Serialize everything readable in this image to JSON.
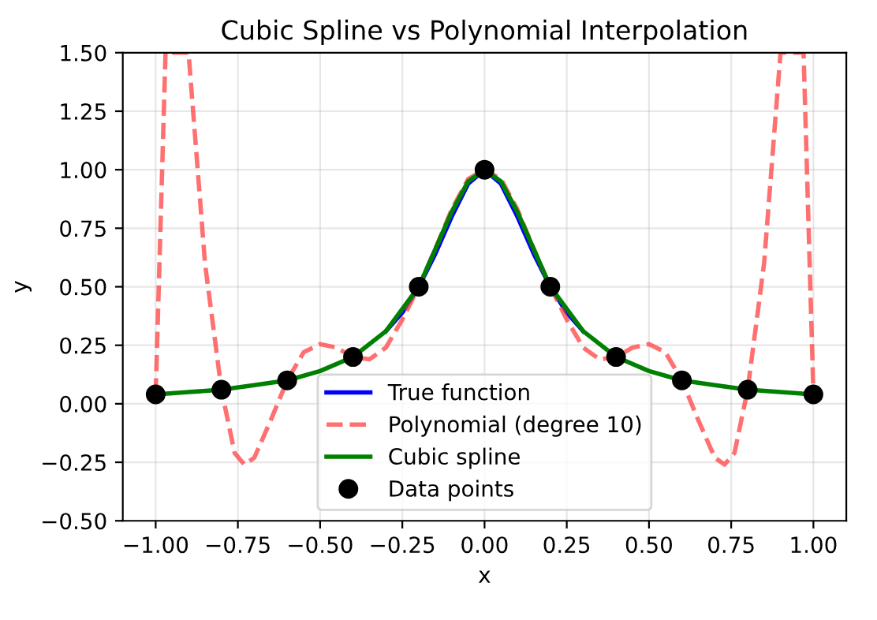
{
  "chart_data": {
    "type": "line",
    "title": "Cubic Spline vs Polynomial Interpolation",
    "xlabel": "x",
    "ylabel": "y",
    "xlim": [
      -1.1,
      1.1
    ],
    "ylim": [
      -0.5,
      1.5
    ],
    "xticks": [
      {
        "value": -1,
        "label": "−1.00"
      },
      {
        "value": -0.75,
        "label": "−0.75"
      },
      {
        "value": -0.5,
        "label": "−0.50"
      },
      {
        "value": -0.25,
        "label": "−0.25"
      },
      {
        "value": 0,
        "label": "0.00"
      },
      {
        "value": 0.25,
        "label": "0.25"
      },
      {
        "value": 0.5,
        "label": "0.50"
      },
      {
        "value": 0.75,
        "label": "0.75"
      },
      {
        "value": 1,
        "label": "1.00"
      }
    ],
    "yticks": [
      {
        "value": -0.5,
        "label": "−0.50"
      },
      {
        "value": -0.25,
        "label": "−0.25"
      },
      {
        "value": 0,
        "label": "0.00"
      },
      {
        "value": 0.25,
        "label": "0.25"
      },
      {
        "value": 0.5,
        "label": "0.50"
      },
      {
        "value": 0.75,
        "label": "0.75"
      },
      {
        "value": 1,
        "label": "1.00"
      },
      {
        "value": 1.25,
        "label": "1.25"
      },
      {
        "value": 1.5,
        "label": "1.50"
      }
    ],
    "grid": true,
    "legend": "bottom",
    "series": [
      {
        "name": "True function",
        "color": "#0000ff",
        "line_style": "solid",
        "marker": "none",
        "x": [
          -0.3,
          -0.25,
          -0.2,
          -0.15,
          -0.1,
          -0.05,
          0,
          0.05,
          0.1,
          0.15,
          0.2,
          0.25,
          0.3
        ],
        "values": [
          0.31,
          0.39,
          0.5,
          0.64,
          0.8,
          0.94,
          1,
          0.94,
          0.8,
          0.64,
          0.5,
          0.39,
          0.31
        ]
      },
      {
        "name": "Polynomial (degree 10)",
        "color": "#ff4040",
        "line_style": "dashed",
        "marker": "none",
        "x": [
          -1,
          -0.97,
          -0.9,
          -0.85,
          -0.8,
          -0.76,
          -0.73,
          -0.7,
          -0.65,
          -0.6,
          -0.55,
          -0.5,
          -0.45,
          -0.4,
          -0.35,
          -0.3,
          -0.25,
          -0.2,
          -0.15,
          -0.1,
          -0.05,
          0,
          0.05,
          0.1,
          0.15,
          0.2,
          0.25,
          0.3,
          0.35,
          0.4,
          0.45,
          0.5,
          0.55,
          0.6,
          0.65,
          0.7,
          0.73,
          0.76,
          0.8,
          0.85,
          0.9,
          0.97,
          1
        ],
        "values": [
          0.04,
          1.5,
          1.5,
          0.6,
          0.06,
          -0.21,
          -0.26,
          -0.23,
          -0.07,
          0.1,
          0.22,
          0.255,
          0.24,
          0.2,
          0.19,
          0.24,
          0.36,
          0.5,
          0.66,
          0.83,
          0.96,
          1,
          0.96,
          0.83,
          0.66,
          0.5,
          0.36,
          0.24,
          0.19,
          0.2,
          0.24,
          0.255,
          0.22,
          0.1,
          -0.07,
          -0.23,
          -0.26,
          -0.21,
          0.06,
          0.6,
          1.5,
          1.5,
          0.04
        ]
      },
      {
        "name": "Cubic spline",
        "color": "#008000",
        "line_style": "solid",
        "marker": "none",
        "x": [
          -1,
          -0.9,
          -0.8,
          -0.7,
          -0.6,
          -0.5,
          -0.4,
          -0.3,
          -0.2,
          -0.15,
          -0.1,
          -0.05,
          0,
          0.05,
          0.1,
          0.15,
          0.2,
          0.3,
          0.4,
          0.5,
          0.6,
          0.7,
          0.8,
          0.9,
          1
        ],
        "values": [
          0.04,
          0.05,
          0.06,
          0.08,
          0.1,
          0.14,
          0.2,
          0.31,
          0.5,
          0.66,
          0.82,
          0.95,
          1,
          0.95,
          0.82,
          0.66,
          0.5,
          0.31,
          0.2,
          0.14,
          0.1,
          0.08,
          0.06,
          0.05,
          0.04
        ]
      },
      {
        "name": "Data points",
        "type": "scatter",
        "color": "#000000",
        "marker": "circle",
        "x": [
          -1,
          -0.8,
          -0.6,
          -0.4,
          -0.2,
          0,
          0.2,
          0.4,
          0.6,
          0.8,
          1
        ],
        "values": [
          0.04,
          0.06,
          0.1,
          0.2,
          0.5,
          1,
          0.5,
          0.2,
          0.1,
          0.06,
          0.04
        ]
      }
    ]
  }
}
